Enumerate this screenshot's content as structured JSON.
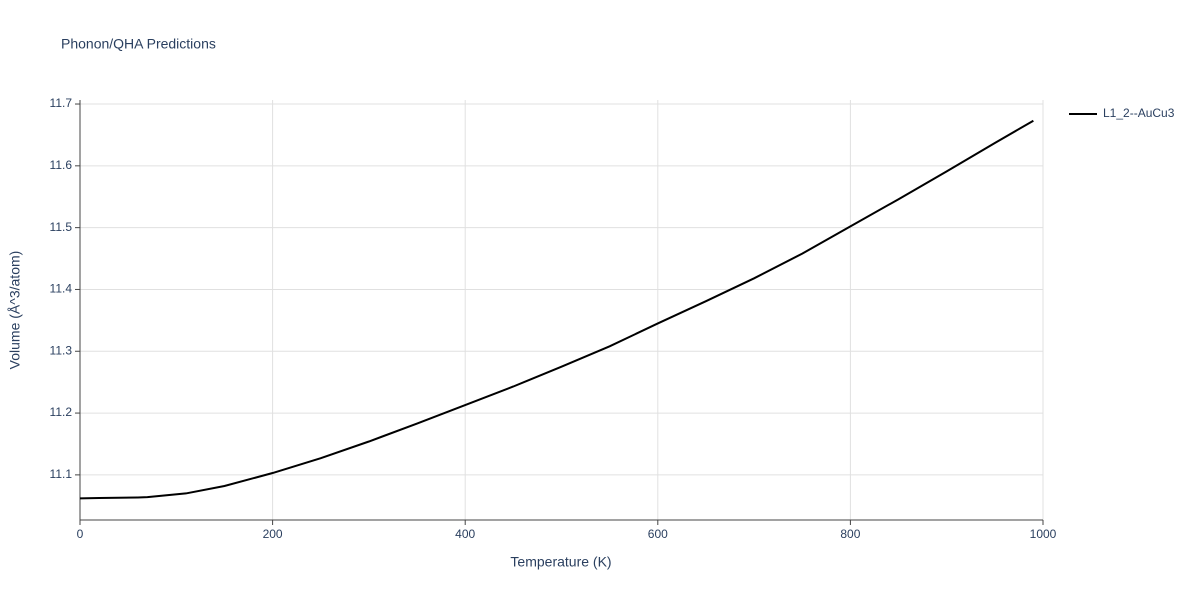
{
  "chart_data": {
    "type": "line",
    "title": "Phonon/QHA Predictions",
    "x_label": "Temperature (K)",
    "y_label": "Volume (Å^3/atom)",
    "xlim": [
      0,
      1000
    ],
    "ylim": [
      11.027,
      11.7065
    ],
    "xticks": [
      0,
      200,
      400,
      600,
      800,
      1000
    ],
    "yticks": [
      11.1,
      11.2,
      11.3,
      11.4,
      11.5,
      11.6,
      11.7
    ],
    "grid": true,
    "legend": "right",
    "x": [
      0,
      20,
      40,
      60,
      70,
      110,
      150,
      200,
      250,
      300,
      350,
      400,
      450,
      500,
      550,
      600,
      650,
      700,
      750,
      800,
      850,
      900,
      950,
      990
    ],
    "series": [
      {
        "name": "L1_2--AuCu3",
        "color": "#000000",
        "values": [
          11.062,
          11.0625,
          11.063,
          11.0635,
          11.064,
          11.07,
          11.082,
          11.103,
          11.127,
          11.154,
          11.183,
          11.213,
          11.243,
          11.275,
          11.308,
          11.345,
          11.381,
          11.418,
          11.458,
          11.502,
          11.546,
          11.591,
          11.637,
          11.673
        ]
      }
    ]
  }
}
